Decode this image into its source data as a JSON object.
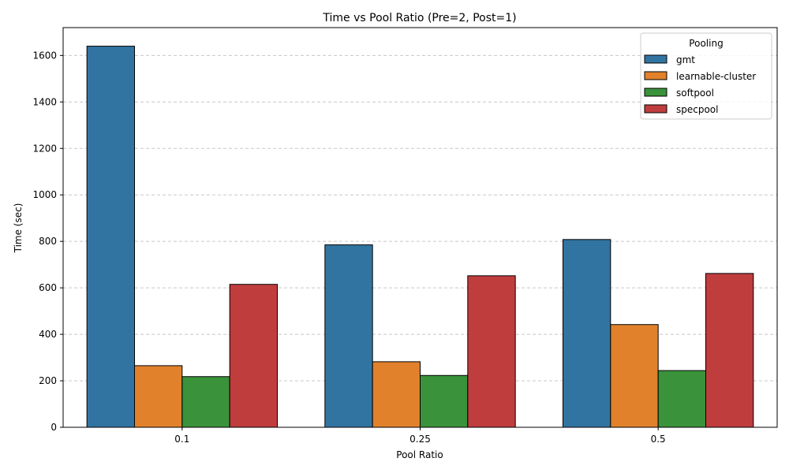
{
  "chart_data": {
    "type": "bar",
    "title": "Time vs Pool Ratio (Pre=2, Post=1)",
    "xlabel": "Pool Ratio",
    "ylabel": "Time (sec)",
    "categories": [
      "0.1",
      "0.25",
      "0.5"
    ],
    "ylim": [
      0,
      1720
    ],
    "yticks": [
      0,
      200,
      400,
      600,
      800,
      1000,
      1200,
      1400,
      1600
    ],
    "grid": "y-dashed",
    "legend": {
      "title": "Pooling",
      "placement": "top-right"
    },
    "series": [
      {
        "name": "gmt",
        "color": "#3274a1",
        "values": [
          1640,
          785,
          808
        ]
      },
      {
        "name": "learnable-cluster",
        "color": "#e1812c",
        "values": [
          265,
          282,
          442
        ]
      },
      {
        "name": "softpool",
        "color": "#3a923a",
        "values": [
          218,
          223,
          244
        ]
      },
      {
        "name": "specpool",
        "color": "#c03d3e",
        "values": [
          615,
          652,
          662
        ]
      }
    ]
  }
}
